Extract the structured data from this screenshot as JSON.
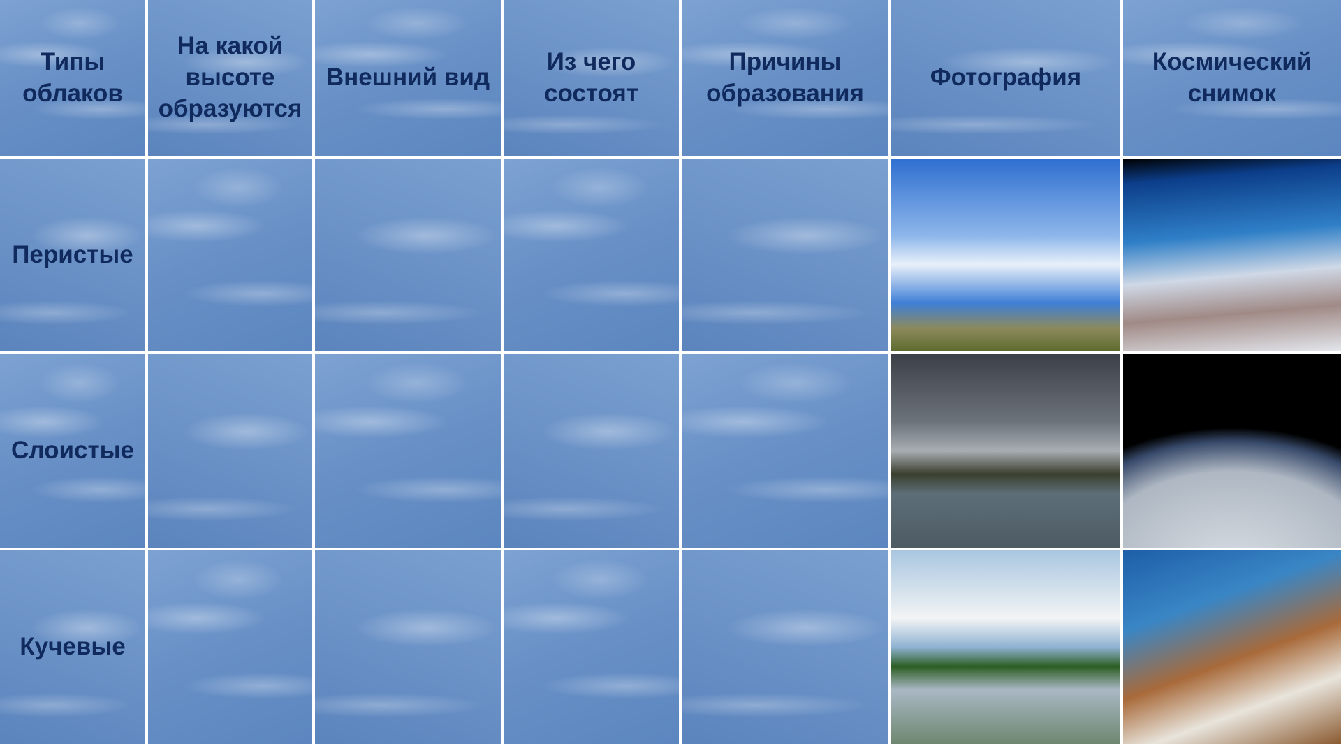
{
  "table": {
    "header": [
      "Типы облаков",
      "На какой высоте образуются",
      "Внешний вид",
      "Из чего состоят",
      "Причины образования",
      "Фотография",
      "Космический снимок"
    ],
    "rows": [
      [
        "Перистые"
      ],
      [
        "Слоистые"
      ],
      [
        "Кучевые"
      ]
    ]
  }
}
